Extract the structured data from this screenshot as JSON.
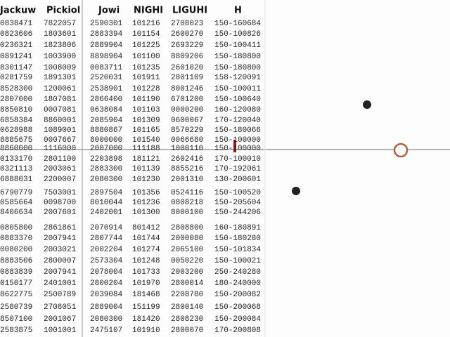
{
  "table": {
    "header": [
      "Jackuw",
      "Pickiol",
      "Jowi",
      "NIGHI",
      "LIGUHI",
      "H"
    ],
    "rows": [
      [
        "0838471",
        "7822057",
        "2590301",
        "101216",
        "2708023",
        "150-160684"
      ],
      [
        "0823606",
        "1803601",
        "2883394",
        "101154",
        "2600270",
        "150-100826"
      ],
      [
        "0236321",
        "1823806",
        "2889904",
        "101225",
        "2693229",
        "150-100411"
      ],
      [
        "0891241",
        "1003900",
        "8898904",
        "101100",
        "8809206",
        "150-180800"
      ],
      [
        "8301147",
        "1008009",
        "0083711",
        "101235",
        "2601020",
        "150-180800"
      ],
      [
        "0281759",
        "1891301",
        "2520031",
        "101911",
        "2801109",
        "158-120091"
      ],
      [
        "8528300",
        "1200061",
        "2538901",
        "101228",
        "8001246",
        "150-100011"
      ],
      [
        "2807000",
        "1807081",
        "2866400",
        "101190",
        "6701200",
        "150-100640"
      ],
      [
        "8850810",
        "0007081",
        "0638084",
        "101103",
        "0000200",
        "160-120080"
      ],
      [
        "6858384",
        "8860001",
        "2085904",
        "101309",
        "0600067",
        "170-120040"
      ],
      [
        "0628988",
        "1089001",
        "8880867",
        "101165",
        "8570229",
        "150-180066"
      ],
      [
        "8885675",
        "0007667",
        "8000000",
        "101540",
        "0066680",
        "150-100000"
      ],
      [
        "8860000",
        "1116000",
        "2007000",
        "111188",
        "1000110",
        "150-100000"
      ],
      [
        "0133170",
        "2801100",
        "2203898",
        "181121",
        "2602416",
        "170-100010"
      ],
      [
        "0321113",
        "2003061",
        "2883300",
        "101139",
        "8855216",
        "170-192061"
      ],
      [
        "6888031",
        "2200007",
        "2080300",
        "101230",
        "2001310",
        "130-200601"
      ],
      [
        "6790779",
        "7503001",
        "2897504",
        "101356",
        "0524116",
        "150-100520"
      ],
      [
        "0585664",
        "0098700",
        "8010044",
        "101236",
        "0808218",
        "150-205604"
      ],
      [
        "8406634",
        "2007601",
        "2402001",
        "101300",
        "8000100",
        "150-244206"
      ],
      [
        "0805800",
        "2861861",
        "2070914",
        "801412",
        "2808800",
        "160-180891"
      ],
      [
        "0883370",
        "2007941",
        "2807744",
        "101744",
        "2000080",
        "150-180280"
      ],
      [
        "0080200",
        "2003021",
        "2002204",
        "101274",
        "2065100",
        "150-101834"
      ],
      [
        "8883506",
        "2800007",
        "2573304",
        "101248",
        "0050220",
        "150-100021"
      ],
      [
        "0883839",
        "2007941",
        "2078004",
        "101733",
        "2003200",
        "250-240280"
      ],
      [
        "0150177",
        "2401001",
        "2800204",
        "101970",
        "2800014",
        "180-240000"
      ],
      [
        "8622775",
        "2500789",
        "2039084",
        "181468",
        "2208780",
        "150-200082"
      ],
      [
        "2580739",
        "2708051",
        "2889004",
        "151199",
        "2800140",
        "150-200068"
      ],
      [
        "8507100",
        "2001067",
        "2080300",
        "181420",
        "2808230",
        "150-200084"
      ],
      [
        "2583875",
        "1001001",
        "2475107",
        "101910",
        "2800070",
        "170-200808"
      ]
    ]
  }
}
